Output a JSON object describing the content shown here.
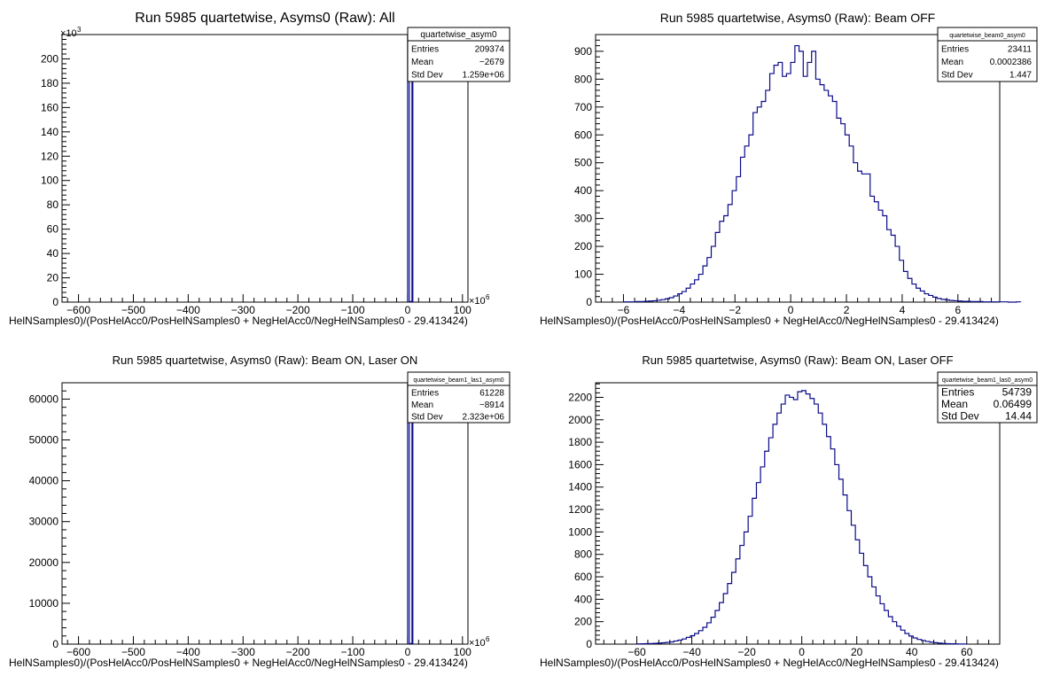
{
  "chart_data": [
    {
      "type": "histogram",
      "title": "Run 5985 quartetwise, Asyms0 (Raw): All",
      "xlabel": "HelNSamples0)/(PosHelAcc0/PosHelNSamples0 + NegHelAcc0/NegHelNSamples0 - 29.413424)",
      "x_multiplier_label": "×10",
      "x_multiplier_exp": "6",
      "y_multiplier_label": "×10",
      "y_multiplier_exp": "3",
      "xlim": [
        -630,
        110
      ],
      "ylim": [
        0,
        220
      ],
      "xticks": [
        -600,
        -500,
        -400,
        -300,
        -200,
        -100,
        0,
        100
      ],
      "yticks": [
        0,
        20,
        40,
        60,
        80,
        100,
        120,
        140,
        160,
        180,
        200
      ],
      "bins": [
        {
          "x0": 0,
          "x1": 3,
          "y": 220
        },
        {
          "x0": 3,
          "x1": 8,
          "y": 0.5
        },
        {
          "x0": 8,
          "x1": 9.5,
          "y": 220
        }
      ],
      "stats": {
        "name": "quartetwise_asym0",
        "rows": [
          {
            "label": "Entries",
            "value": "209374"
          },
          {
            "label": "Mean",
            "value": "−2679"
          },
          {
            "label": "Std Dev",
            "value": "1.259e+06"
          }
        ]
      }
    },
    {
      "type": "histogram",
      "title": "Run 5985 quartetwise, Asyms0 (Raw): Beam OFF",
      "xlabel": "HelNSamples0)/(PosHelAcc0/PosHelNSamples0 + NegHelAcc0/NegHelNSamples0 - 29.413424)",
      "xlim": [
        -7,
        7.5
      ],
      "ylim": [
        0,
        960
      ],
      "xticks": [
        -6,
        -4,
        -2,
        0,
        2,
        4,
        6
      ],
      "yticks": [
        0,
        100,
        200,
        300,
        400,
        500,
        600,
        700,
        800,
        900
      ],
      "bin_x0": -6.0,
      "bin_width": 0.15,
      "counts": [
        1,
        1,
        1,
        2,
        2,
        3,
        4,
        5,
        7,
        9,
        12,
        16,
        22,
        30,
        38,
        50,
        65,
        80,
        100,
        130,
        160,
        200,
        250,
        290,
        310,
        350,
        400,
        450,
        520,
        560,
        600,
        680,
        700,
        720,
        760,
        820,
        850,
        860,
        810,
        820,
        860,
        920,
        900,
        810,
        860,
        900,
        800,
        780,
        760,
        740,
        720,
        660,
        640,
        600,
        560,
        500,
        470,
        460,
        460,
        380,
        360,
        330,
        310,
        260,
        240,
        200,
        150,
        110,
        85,
        65,
        50,
        40,
        30,
        24,
        18,
        13,
        10,
        8,
        6,
        5,
        4,
        3,
        3,
        2,
        2,
        2,
        1,
        1,
        1,
        1,
        1,
        1,
        0,
        0,
        1
      ],
      "stats": {
        "name": "quartetwise_beam0_asym0",
        "rows": [
          {
            "label": "Entries",
            "value": "23411"
          },
          {
            "label": "Mean",
            "value": "0.0002386"
          },
          {
            "label": "Std Dev",
            "value": "1.447"
          }
        ]
      }
    },
    {
      "type": "histogram",
      "title": "Run 5985 quartetwise, Asyms0 (Raw): Beam ON, Laser ON",
      "xlabel": "HelNSamples0)/(PosHelAcc0/PosHelNSamples0 + NegHelAcc0/NegHelNSamples0 - 29.413424)",
      "x_multiplier_label": "×10",
      "x_multiplier_exp": "6",
      "xlim": [
        -630,
        110
      ],
      "ylim": [
        0,
        64000
      ],
      "xticks": [
        -600,
        -500,
        -400,
        -300,
        -200,
        -100,
        0,
        100
      ],
      "yticks": [
        0,
        10000,
        20000,
        30000,
        40000,
        50000,
        60000
      ],
      "bins": [
        {
          "x0": 0,
          "x1": 3,
          "y": 64000
        },
        {
          "x0": 3,
          "x1": 8,
          "y": 150
        },
        {
          "x0": 8,
          "x1": 9.5,
          "y": 64000
        }
      ],
      "stats": {
        "name": "quartetwise_beam1_las1_asym0",
        "rows": [
          {
            "label": "Entries",
            "value": "61228"
          },
          {
            "label": "Mean",
            "value": "−8914"
          },
          {
            "label": "Std Dev",
            "value": "2.323e+06"
          }
        ]
      }
    },
    {
      "type": "histogram",
      "title": "Run 5985 quartetwise, Asyms0 (Raw): Beam ON, Laser OFF",
      "xlabel": "HelNSamples0)/(PosHelAcc0/PosHelNSamples0 + NegHelAcc0/NegHelNSamples0 - 29.413424)",
      "xlim": [
        -75,
        72
      ],
      "ylim": [
        0,
        2330
      ],
      "xticks": [
        -60,
        -40,
        -20,
        0,
        20,
        40,
        60
      ],
      "yticks": [
        0,
        200,
        400,
        600,
        800,
        1000,
        1200,
        1400,
        1600,
        1800,
        2000,
        2200
      ],
      "bin_x0": -60,
      "bin_width": 1.5,
      "counts": [
        2,
        3,
        4,
        5,
        7,
        9,
        12,
        16,
        20,
        28,
        36,
        46,
        60,
        75,
        95,
        120,
        150,
        190,
        240,
        300,
        370,
        450,
        540,
        640,
        760,
        880,
        1000,
        1140,
        1300,
        1440,
        1580,
        1720,
        1840,
        1960,
        2060,
        2140,
        2220,
        2200,
        2180,
        2250,
        2260,
        2230,
        2190,
        2140,
        2060,
        1960,
        1850,
        1740,
        1600,
        1470,
        1330,
        1190,
        1060,
        930,
        810,
        700,
        600,
        510,
        430,
        360,
        300,
        245,
        200,
        160,
        125,
        95,
        72,
        55,
        42,
        32,
        24,
        18,
        13,
        9,
        6,
        4,
        3,
        2,
        1,
        1
      ],
      "stats": {
        "name": "quartetwise_beam1_las0_asym0",
        "rows": [
          {
            "label": "Entries",
            "value": "54739"
          },
          {
            "label": "Mean",
            "value": "0.06499"
          },
          {
            "label": "Std Dev",
            "value": "14.44"
          }
        ]
      }
    }
  ]
}
